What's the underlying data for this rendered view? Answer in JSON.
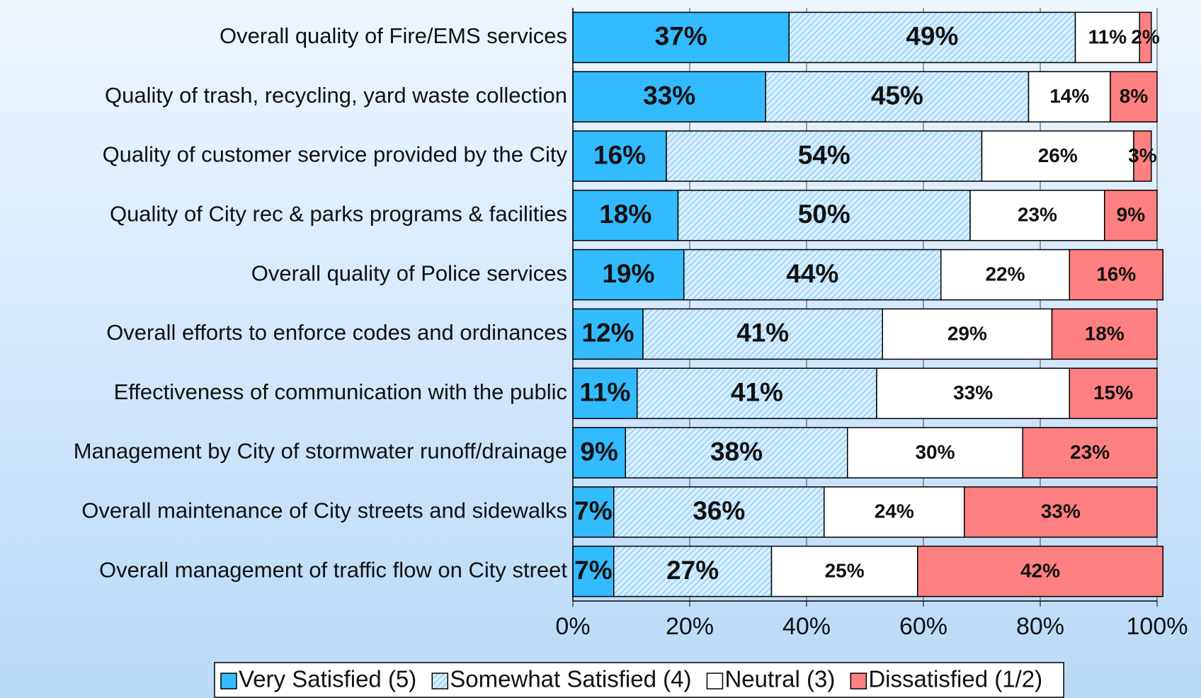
{
  "chart_data": {
    "type": "stacked_barh",
    "categories": [
      "Overall quality of Fire/EMS services",
      "Quality of trash, recycling, yard waste collection",
      "Quality of customer service provided by the City",
      "Quality of City rec & parks programs & facilities",
      "Overall quality of Police services",
      "Overall efforts to enforce codes and ordinances",
      "Effectiveness of communication with the public",
      "Management by City of stormwater runoff/drainage",
      "Overall maintenance of City streets and sidewalks",
      "Overall management of traffic flow on City street"
    ],
    "series": [
      {
        "name": "Very Satisfied (5)",
        "color": "#33bbff",
        "values": [
          37,
          33,
          16,
          18,
          19,
          12,
          11,
          9,
          7,
          7
        ],
        "value_labels": [
          "37%",
          "33%",
          "16%",
          "18%",
          "19%",
          "12%",
          "11%",
          "9%",
          "7%",
          "7%"
        ]
      },
      {
        "name": "Somewhat Satisfied (4)",
        "color": "#d6eeff",
        "pattern": "hatch",
        "values": [
          49,
          45,
          54,
          50,
          44,
          41,
          41,
          38,
          36,
          27
        ],
        "value_labels": [
          "49%",
          "45%",
          "54%",
          "50%",
          "44%",
          "41%",
          "41%",
          "38%",
          "36%",
          "27%"
        ]
      },
      {
        "name": "Neutral (3)",
        "color": "#ffffff",
        "values": [
          11,
          14,
          26,
          23,
          22,
          29,
          33,
          30,
          24,
          25
        ],
        "value_labels": [
          "11%",
          "14%",
          "26%",
          "23%",
          "22%",
          "29%",
          "33%",
          "30%",
          "24%",
          "25%"
        ]
      },
      {
        "name": "Dissatisfied (1/2)",
        "color": "#ff8080",
        "values": [
          2,
          8,
          3,
          9,
          16,
          18,
          15,
          23,
          33,
          42
        ],
        "value_labels": [
          "2%",
          "8%",
          "3%",
          "9%",
          "16%",
          "18%",
          "15%",
          "23%",
          "33%",
          "42%"
        ]
      }
    ],
    "xlim": [
      0,
      100
    ],
    "xticks": [
      {
        "value": 0,
        "label": "0%"
      },
      {
        "value": 20,
        "label": "20%"
      },
      {
        "value": 40,
        "label": "40%"
      },
      {
        "value": 60,
        "label": "60%"
      },
      {
        "value": 80,
        "label": "80%"
      },
      {
        "value": 100,
        "label": "100%"
      }
    ],
    "grid": true,
    "legend": "bottom"
  }
}
